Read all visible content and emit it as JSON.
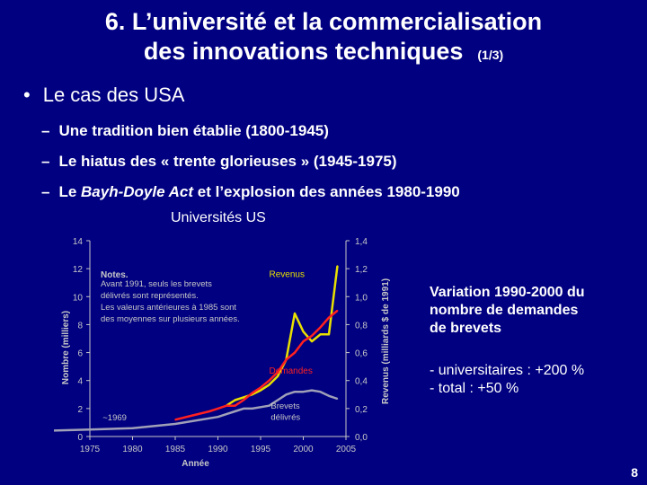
{
  "slide": {
    "title_line1": "6. L’université et la commercialisation",
    "title_line2": "des innovations techniques",
    "title_counter": "(1/3)",
    "bullet": "Le cas des USA",
    "dashes": [
      {
        "text": "Une tradition bien établie (1800-1945)"
      },
      {
        "text": "Le hiatus des « trente glorieuses » (1945-1975)"
      },
      {
        "pre": "Le ",
        "em": "Bayh-Doyle Act",
        "post": " et l’explosion des années 1980-1990"
      }
    ],
    "variation_lines": [
      "Variation 1990-2000 du",
      "nombre de demandes",
      "de brevets"
    ],
    "growth_lines": [
      "- universitaires : +200 %",
      "- total : +50 %"
    ],
    "page_number": "8"
  },
  "chart_data": {
    "type": "line",
    "title": "Universités US",
    "xlabel": "Année",
    "ylabel_left": "Nombre (milliers)",
    "ylabel_right": "Revenus (milliards $ de 1991)",
    "xlim": [
      1975,
      2005
    ],
    "ylim_left": [
      0,
      14
    ],
    "ylim_right": [
      0,
      1.4
    ],
    "x_ticks": [
      "1975",
      "1980",
      "1985",
      "1990",
      "1995",
      "2000",
      "2005"
    ],
    "y_ticks_left": [
      "0",
      "2",
      "4",
      "6",
      "8",
      "10",
      "12",
      "14"
    ],
    "y_ticks_right": [
      "0,0",
      "0,2",
      "0,4",
      "0,6",
      "0,8",
      "1,0",
      "1,2",
      "1,4"
    ],
    "notes": [
      "Notes.",
      "Avant 1991, seuls les brevets",
      "délivrés sont représentés.",
      "Les valeurs antérieures à 1985 sont",
      "des moyennes sur plusieurs années."
    ],
    "annotation_1969": "~1969",
    "series": [
      {
        "name": "Revenus",
        "axis": "right",
        "color": "#e8e000",
        "x": [
          1991,
          1992,
          1993,
          1994,
          1995,
          1996,
          1997,
          1998,
          1999,
          2000,
          2001,
          2002,
          2003,
          2004
        ],
        "y": [
          0.22,
          0.26,
          0.28,
          0.3,
          0.33,
          0.37,
          0.43,
          0.55,
          0.88,
          0.75,
          0.68,
          0.73,
          0.73,
          1.22
        ]
      },
      {
        "name": "Demandes",
        "axis": "left",
        "color": "#ff2020",
        "x": [
          1985,
          1987,
          1989,
          1990,
          1991,
          1992,
          1993,
          1994,
          1995,
          1996,
          1997,
          1998,
          1999,
          2000,
          2001,
          2002,
          2003,
          2004
        ],
        "y": [
          1.2,
          1.5,
          1.8,
          2.0,
          2.2,
          2.2,
          2.6,
          3.1,
          3.5,
          4.0,
          4.6,
          5.5,
          6.0,
          6.8,
          7.2,
          7.8,
          8.5,
          9.0
        ]
      },
      {
        "name": "Brevets délivrés",
        "axis": "left",
        "color": "#a0a0b8",
        "x": [
          1969,
          1975,
          1980,
          1985,
          1990,
          1991,
          1992,
          1993,
          1994,
          1995,
          1996,
          1997,
          1998,
          1999,
          2000,
          2001,
          2002,
          2003,
          2004
        ],
        "y": [
          0.4,
          0.5,
          0.6,
          0.9,
          1.4,
          1.6,
          1.8,
          2.0,
          2.0,
          2.1,
          2.2,
          2.6,
          3.0,
          3.2,
          3.2,
          3.3,
          3.2,
          2.9,
          2.7
        ]
      }
    ]
  }
}
